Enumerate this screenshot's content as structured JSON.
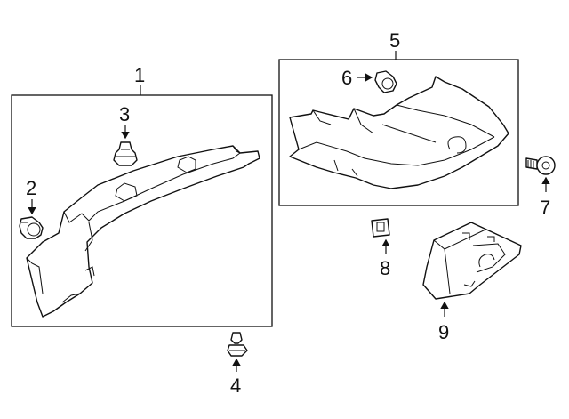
{
  "diagram": {
    "callouts": [
      {
        "id": "1",
        "label": "1"
      },
      {
        "id": "2",
        "label": "2"
      },
      {
        "id": "3",
        "label": "3"
      },
      {
        "id": "4",
        "label": "4"
      },
      {
        "id": "5",
        "label": "5"
      },
      {
        "id": "6",
        "label": "6"
      },
      {
        "id": "7",
        "label": "7"
      },
      {
        "id": "8",
        "label": "8"
      },
      {
        "id": "9",
        "label": "9"
      }
    ]
  }
}
